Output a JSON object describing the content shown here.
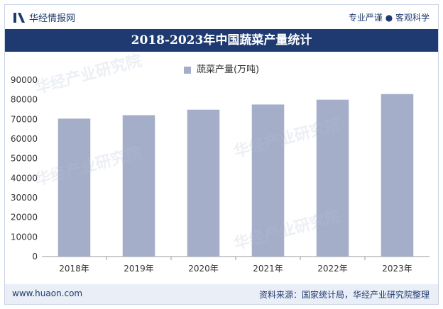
{
  "header": {
    "logo_text": "华经情报网",
    "tagline": "专业严谨 ● 客观科学"
  },
  "chart_data": {
    "type": "bar",
    "title": "2018-2023年中国蔬菜产量统计",
    "categories": [
      "2018年",
      "2019年",
      "2020年",
      "2021年",
      "2022年",
      "2023年"
    ],
    "series": [
      {
        "name": "蔬菜产量(万吨)",
        "values": [
          70347,
          72103,
          74913,
          77549,
          79997,
          82868
        ]
      }
    ],
    "ylim": [
      0,
      90000
    ],
    "yticks": [
      "0",
      "10000",
      "20000",
      "30000",
      "40000",
      "50000",
      "60000",
      "70000",
      "80000",
      "90000"
    ],
    "bar_color": "#a4aec8",
    "legend_position": "top-center"
  },
  "footer": {
    "url": "www.huaon.com",
    "source": "资料来源：国家统计局，华经产业研究院整理"
  },
  "colors": {
    "primary": "#1e3a70",
    "footer_bg": "#e9eef7",
    "bar": "#a4aec8"
  }
}
